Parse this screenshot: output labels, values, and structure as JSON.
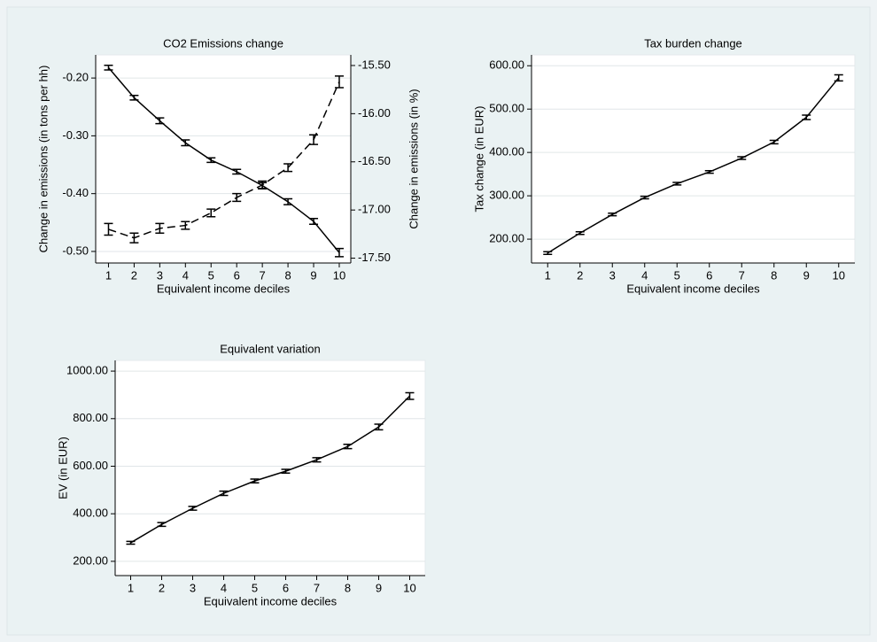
{
  "chart_data": [
    {
      "type": "line",
      "title": "CO2 Emissions change",
      "xlabel": "Equivalent income deciles",
      "ylabel": "Change in emissions (in tons per hh)",
      "y2label": "Change in emissions (in %)",
      "x": [
        1,
        2,
        3,
        4,
        5,
        6,
        7,
        8,
        9,
        10
      ],
      "xlim": [
        0.5,
        10.45
      ],
      "xticks": [
        1,
        2,
        3,
        4,
        5,
        6,
        7,
        8,
        9,
        10
      ],
      "ylim": [
        -0.52,
        -0.16
      ],
      "yticks": [
        {
          "value": -0.5,
          "label": "-0.50"
        },
        {
          "value": -0.4,
          "label": "-0.40"
        },
        {
          "value": -0.3,
          "label": "-0.30"
        },
        {
          "value": -0.2,
          "label": "-0.20"
        }
      ],
      "y2lim": [
        -17.55,
        -15.39
      ],
      "y2ticks": [
        {
          "value": -17.5,
          "label": "-17.50"
        },
        {
          "value": -17,
          "label": "-17.00"
        },
        {
          "value": -16.5,
          "label": "-16.50"
        },
        {
          "value": -16,
          "label": "-16.00"
        },
        {
          "value": -15.5,
          "label": "-15.50"
        }
      ],
      "grid": true,
      "series": [
        {
          "color": "#000000",
          "dash": false,
          "values": [
            -0.182,
            -0.234,
            -0.274,
            -0.312,
            -0.342,
            -0.362,
            -0.386,
            -0.414,
            -0.448,
            -0.502
          ],
          "errors": [
            0.004,
            0.004,
            0.005,
            0.005,
            0.004,
            0.004,
            0.005,
            0.005,
            0.005,
            0.007
          ]
        },
        {
          "color": "#000000",
          "dash": true,
          "axis": "y2",
          "values": [
            -17.2,
            -17.29,
            -17.19,
            -17.16,
            -17.03,
            -16.87,
            -16.74,
            -16.56,
            -16.27,
            -15.67
          ],
          "errors": [
            0.06,
            0.05,
            0.05,
            0.04,
            0.04,
            0.04,
            0.04,
            0.04,
            0.05,
            0.06
          ]
        }
      ]
    },
    {
      "type": "line",
      "title": "Tax burden change",
      "xlabel": "Equivalent income deciles",
      "ylabel": "Tax change (in EUR)",
      "x": [
        1,
        2,
        3,
        4,
        5,
        6,
        7,
        8,
        9,
        10
      ],
      "xlim": [
        0.5,
        10.5
      ],
      "xticks": [
        1,
        2,
        3,
        4,
        5,
        6,
        7,
        8,
        9,
        10
      ],
      "ylim": [
        145,
        625
      ],
      "yticks": [
        {
          "value": 200,
          "label": "200.00"
        },
        {
          "value": 300,
          "label": "300.00"
        },
        {
          "value": 400,
          "label": "400.00"
        },
        {
          "value": 500,
          "label": "500.00"
        },
        {
          "value": 600,
          "label": "600.00"
        }
      ],
      "grid": true,
      "series": [
        {
          "color": "#000000",
          "dash": false,
          "values": [
            168,
            214,
            257,
            296,
            328,
            355,
            387,
            424,
            481,
            572
          ],
          "errors": [
            3,
            3,
            3,
            3,
            3,
            3,
            3,
            4,
            5,
            7
          ]
        }
      ]
    },
    {
      "type": "line",
      "title": "Equivalent variation",
      "xlabel": "Equivalent income deciles",
      "ylabel": "EV (in EUR)",
      "x": [
        1,
        2,
        3,
        4,
        5,
        6,
        7,
        8,
        9,
        10
      ],
      "xlim": [
        0.5,
        10.5
      ],
      "xticks": [
        1,
        2,
        3,
        4,
        5,
        6,
        7,
        8,
        9,
        10
      ],
      "ylim": [
        140,
        1045
      ],
      "yticks": [
        {
          "value": 200,
          "label": "200.00"
        },
        {
          "value": 400,
          "label": "400.00"
        },
        {
          "value": 600,
          "label": "600.00"
        },
        {
          "value": 800,
          "label": "800.00"
        },
        {
          "value": 1000,
          "label": "1000.00"
        }
      ],
      "grid": true,
      "series": [
        {
          "color": "#000000",
          "dash": false,
          "values": [
            278,
            355,
            423,
            486,
            538,
            579,
            627,
            683,
            765,
            895
          ],
          "errors": [
            6,
            8,
            8,
            9,
            8,
            8,
            9,
            9,
            12,
            14
          ]
        }
      ]
    }
  ]
}
